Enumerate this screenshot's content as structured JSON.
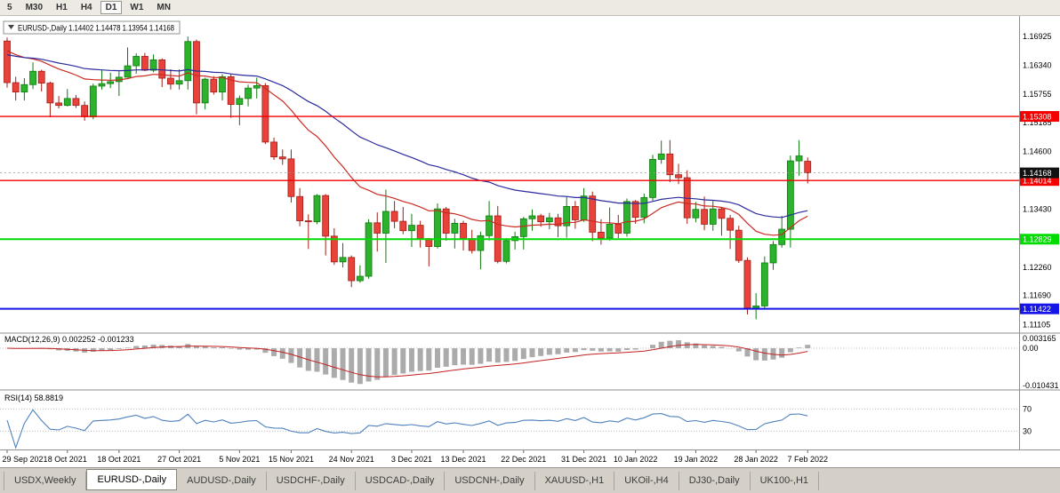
{
  "toolbar": {
    "timeframes": [
      "5",
      "M30",
      "H1",
      "H4",
      "D1",
      "W1",
      "MN"
    ],
    "active": "D1"
  },
  "tabs": {
    "items": [
      {
        "label": "USDX,Weekly",
        "active": false
      },
      {
        "label": "EURUSD-,Daily",
        "active": true
      },
      {
        "label": "AUDUSD-,Daily",
        "active": false
      },
      {
        "label": "USDCHF-,Daily",
        "active": false
      },
      {
        "label": "USDCAD-,Daily",
        "active": false
      },
      {
        "label": "USDCNH-,Daily",
        "active": false
      },
      {
        "label": "XAUUSD-,H1",
        "active": false
      },
      {
        "label": "UKOil-,H4",
        "active": false
      },
      {
        "label": "DJ30-,Daily",
        "active": false
      },
      {
        "label": "UK100-,H1",
        "active": false
      }
    ]
  },
  "price_axis": {
    "labels": [
      "1.16925",
      "1.16340",
      "1.15755",
      "1.15185",
      "1.14600",
      "1.13430",
      "1.12260",
      "1.11690",
      "1.11105"
    ]
  },
  "chart_data": {
    "type": "candlestick",
    "title": "EURUSD-,Daily",
    "ohlc_display": {
      "open": "1.14402",
      "high": "1.14478",
      "low": "1.13954",
      "close": "1.14168"
    },
    "price_range": [
      1.1095,
      1.173
    ],
    "colors": {
      "up": "#2cb22c",
      "up_border": "#0f7a0f",
      "down": "#e8423a",
      "down_border": "#a01d17"
    },
    "moving_averages": [
      {
        "name": "ma-fast",
        "period": 20,
        "seed": 1.167,
        "color": "#c92a22"
      },
      {
        "name": "ma-slow",
        "period": 45,
        "seed": 1.1658,
        "color": "#2b2b9e"
      }
    ],
    "levels": [
      {
        "price": 1.15308,
        "label": "1.15308",
        "color": "#f40000",
        "width": 1.4
      },
      {
        "price": 1.14014,
        "label": "1.14014",
        "color": "#f40000",
        "width": 1.4
      },
      {
        "price": 1.12829,
        "label": "1.12829",
        "color": "#00dc00",
        "width": 2
      },
      {
        "price": 1.11422,
        "label": "1.11422",
        "color": "#1515e8",
        "width": 2
      }
    ],
    "current_price": {
      "value": 1.14168,
      "label": "1.14168",
      "bg": "#111111"
    },
    "indicators": [
      {
        "type": "MACD",
        "label": "MACD(12,26,9)",
        "values": [
          "0.002252",
          "-0.001233"
        ],
        "axis_labels": [
          {
            "text": "0.003165",
            "v": 0.003165
          },
          {
            "text": "0.00",
            "v": 0
          },
          {
            "text": "-0.010431",
            "v": -0.010431
          }
        ],
        "histogram_color": "#ababab",
        "signal_color": "#c42020"
      },
      {
        "type": "RSI",
        "label": "RSI(14)",
        "value": "58.8819",
        "axis_labels": [
          {
            "text": "70",
            "v": 70
          },
          {
            "text": "30",
            "v": 30
          }
        ],
        "levels": [
          70,
          30
        ],
        "line_color": "#4f81bd"
      }
    ],
    "date_ticks": [
      {
        "label": "29 Sep 2021",
        "i": 0
      },
      {
        "label": "8 Oct 2021",
        "i": 7
      },
      {
        "label": "18 Oct 2021",
        "i": 13
      },
      {
        "label": "27 Oct 2021",
        "i": 20
      },
      {
        "label": "5 Nov 2021",
        "i": 27
      },
      {
        "label": "15 Nov 2021",
        "i": 33
      },
      {
        "label": "24 Nov 2021",
        "i": 40
      },
      {
        "label": "3 Dec 2021",
        "i": 47
      },
      {
        "label": "13 Dec 2021",
        "i": 53
      },
      {
        "label": "22 Dec 2021",
        "i": 60
      },
      {
        "label": "31 Dec 2021",
        "i": 67
      },
      {
        "label": "10 Jan 2022",
        "i": 73
      },
      {
        "label": "19 Jan 2022",
        "i": 80
      },
      {
        "label": "28 Jan 2022",
        "i": 87
      },
      {
        "label": "7 Feb 2022",
        "i": 93
      }
    ],
    "candles": [
      [
        1.1683,
        1.169,
        1.1589,
        1.1599
      ],
      [
        1.1599,
        1.1611,
        1.1563,
        1.158
      ],
      [
        1.158,
        1.1608,
        1.1563,
        1.1595
      ],
      [
        1.1595,
        1.164,
        1.1586,
        1.1622
      ],
      [
        1.1622,
        1.1625,
        1.1581,
        1.1598
      ],
      [
        1.1598,
        1.1601,
        1.1529,
        1.1558
      ],
      [
        1.1558,
        1.1572,
        1.1547,
        1.1553
      ],
      [
        1.1553,
        1.1586,
        1.1551,
        1.1567
      ],
      [
        1.1567,
        1.1574,
        1.1548,
        1.1553
      ],
      [
        1.1553,
        1.1561,
        1.1522,
        1.153
      ],
      [
        1.153,
        1.1597,
        1.1525,
        1.1592
      ],
      [
        1.1592,
        1.1624,
        1.1585,
        1.1597
      ],
      [
        1.1597,
        1.1619,
        1.1588,
        1.1601
      ],
      [
        1.1601,
        1.1622,
        1.1572,
        1.161
      ],
      [
        1.161,
        1.167,
        1.1609,
        1.1633
      ],
      [
        1.1633,
        1.1658,
        1.1617,
        1.1652
      ],
      [
        1.1652,
        1.1659,
        1.1622,
        1.1624
      ],
      [
        1.1624,
        1.1656,
        1.162,
        1.1645
      ],
      [
        1.1645,
        1.1648,
        1.159,
        1.1608
      ],
      [
        1.1608,
        1.1626,
        1.1585,
        1.1596
      ],
      [
        1.1596,
        1.1626,
        1.1585,
        1.1603
      ],
      [
        1.1603,
        1.1692,
        1.1585,
        1.1682
      ],
      [
        1.1682,
        1.1686,
        1.1535,
        1.1558
      ],
      [
        1.1558,
        1.1609,
        1.1545,
        1.1606
      ],
      [
        1.1606,
        1.1612,
        1.1575,
        1.158
      ],
      [
        1.158,
        1.1616,
        1.1563,
        1.1611
      ],
      [
        1.1611,
        1.1617,
        1.1528,
        1.1555
      ],
      [
        1.1555,
        1.1573,
        1.1513,
        1.1567
      ],
      [
        1.1567,
        1.1595,
        1.1551,
        1.1588
      ],
      [
        1.1588,
        1.1609,
        1.1567,
        1.1593
      ],
      [
        1.1593,
        1.1598,
        1.1475,
        1.1479
      ],
      [
        1.1479,
        1.1488,
        1.1443,
        1.1449
      ],
      [
        1.1449,
        1.1464,
        1.1433,
        1.1445
      ],
      [
        1.1445,
        1.1464,
        1.1357,
        1.1369
      ],
      [
        1.1369,
        1.1386,
        1.1309,
        1.132
      ],
      [
        1.132,
        1.1333,
        1.1263,
        1.1318
      ],
      [
        1.1318,
        1.1374,
        1.1313,
        1.1371
      ],
      [
        1.1371,
        1.1374,
        1.125,
        1.1289
      ],
      [
        1.1289,
        1.1305,
        1.1231,
        1.1237
      ],
      [
        1.1237,
        1.1275,
        1.1226,
        1.1246
      ],
      [
        1.1246,
        1.125,
        1.1186,
        1.1199
      ],
      [
        1.1199,
        1.123,
        1.1195,
        1.1208
      ],
      [
        1.1208,
        1.1323,
        1.1203,
        1.1316
      ],
      [
        1.1316,
        1.1337,
        1.1258,
        1.1295
      ],
      [
        1.1295,
        1.1383,
        1.1235,
        1.1339
      ],
      [
        1.1339,
        1.136,
        1.1305,
        1.1319
      ],
      [
        1.1319,
        1.1348,
        1.1293,
        1.13
      ],
      [
        1.13,
        1.1334,
        1.1267,
        1.1311
      ],
      [
        1.1311,
        1.132,
        1.1266,
        1.1284
      ],
      [
        1.1284,
        1.1285,
        1.1228,
        1.1268
      ],
      [
        1.1268,
        1.1355,
        1.1264,
        1.1344
      ],
      [
        1.1344,
        1.1348,
        1.128,
        1.1295
      ],
      [
        1.1295,
        1.1324,
        1.1264,
        1.1315
      ],
      [
        1.1315,
        1.132,
        1.126,
        1.1284
      ],
      [
        1.1284,
        1.1302,
        1.1254,
        1.126
      ],
      [
        1.126,
        1.1298,
        1.1222,
        1.129
      ],
      [
        1.129,
        1.136,
        1.128,
        1.133
      ],
      [
        1.133,
        1.135,
        1.1234,
        1.1238
      ],
      [
        1.1238,
        1.1285,
        1.1234,
        1.128
      ],
      [
        1.128,
        1.1298,
        1.1262,
        1.1288
      ],
      [
        1.1288,
        1.1328,
        1.1262,
        1.1324
      ],
      [
        1.1324,
        1.1343,
        1.13,
        1.133
      ],
      [
        1.133,
        1.1334,
        1.1308,
        1.1318
      ],
      [
        1.1318,
        1.1336,
        1.1303,
        1.1326
      ],
      [
        1.1326,
        1.1334,
        1.1287,
        1.131
      ],
      [
        1.131,
        1.1369,
        1.1286,
        1.1349
      ],
      [
        1.1349,
        1.136,
        1.1304,
        1.1322
      ],
      [
        1.1322,
        1.1386,
        1.1318,
        1.137
      ],
      [
        1.137,
        1.1379,
        1.1279,
        1.1297
      ],
      [
        1.1297,
        1.1323,
        1.1272,
        1.1285
      ],
      [
        1.1285,
        1.1347,
        1.128,
        1.1313
      ],
      [
        1.1313,
        1.1332,
        1.1285,
        1.1295
      ],
      [
        1.1295,
        1.1365,
        1.1288,
        1.1359
      ],
      [
        1.1359,
        1.1362,
        1.1314,
        1.1327
      ],
      [
        1.1327,
        1.1375,
        1.1315,
        1.1367
      ],
      [
        1.1367,
        1.1453,
        1.136,
        1.1444
      ],
      [
        1.1444,
        1.1482,
        1.1435,
        1.1455
      ],
      [
        1.1455,
        1.1483,
        1.1398,
        1.1413
      ],
      [
        1.1413,
        1.1435,
        1.1394,
        1.1407
      ],
      [
        1.1407,
        1.1422,
        1.1314,
        1.1326
      ],
      [
        1.1326,
        1.1358,
        1.1317,
        1.1343
      ],
      [
        1.1343,
        1.1369,
        1.1301,
        1.1313
      ],
      [
        1.1313,
        1.136,
        1.13,
        1.1344
      ],
      [
        1.1344,
        1.1348,
        1.129,
        1.1325
      ],
      [
        1.1325,
        1.1332,
        1.1263,
        1.1301
      ],
      [
        1.1301,
        1.131,
        1.1235,
        1.124
      ],
      [
        1.124,
        1.1246,
        1.1131,
        1.1144
      ],
      [
        1.1144,
        1.1174,
        1.1121,
        1.1148
      ],
      [
        1.1148,
        1.1248,
        1.1141,
        1.1235
      ],
      [
        1.1235,
        1.1279,
        1.1221,
        1.1272
      ],
      [
        1.1272,
        1.133,
        1.1266,
        1.1303
      ],
      [
        1.1303,
        1.1452,
        1.1266,
        1.1441
      ],
      [
        1.1441,
        1.1483,
        1.1411,
        1.1451
      ],
      [
        1.14402,
        1.14478,
        1.13954,
        1.14168
      ]
    ]
  }
}
